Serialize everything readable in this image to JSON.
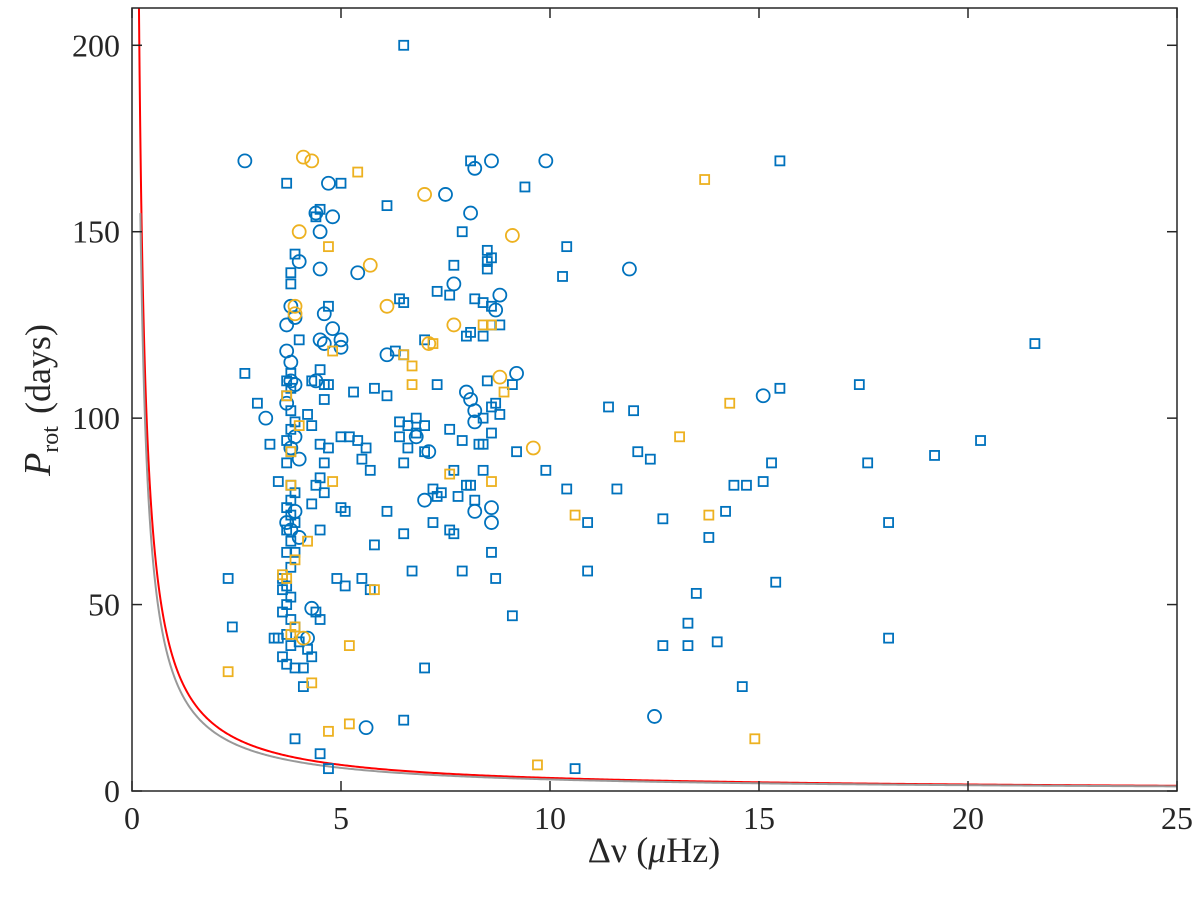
{
  "chart_data": {
    "type": "scatter",
    "title": "",
    "xlabel": {
      "symbol": "Δν",
      "unit_open": "(",
      "unit_mu": "μ",
      "unit_rest": "Hz)"
    },
    "ylabel": {
      "symbol": "P",
      "subscript": "rot",
      "unit": "(days)"
    },
    "xlim": [
      0,
      25
    ],
    "ylim": [
      0,
      210
    ],
    "xticks": [
      0,
      5,
      10,
      15,
      20,
      25
    ],
    "yticks": [
      0,
      50,
      100,
      150,
      200
    ],
    "xtick_labels": [
      "0",
      "5",
      "10",
      "15",
      "20",
      "25"
    ],
    "ytick_labels": [
      "0",
      "50",
      "100",
      "150",
      "200"
    ],
    "grid": false,
    "legend": "none",
    "colors": {
      "blue": "#0072BD",
      "yellow": "#EDB120",
      "red_curve": "#FF0000",
      "gray_curve": "#999999",
      "axis": "#262626"
    },
    "curves": [
      {
        "id": "red",
        "color": "#FF0000",
        "k": 35,
        "x_start": 0.16
      },
      {
        "id": "gray",
        "color": "#999999",
        "k": 31,
        "x_start": 0.2
      }
    ],
    "series": [
      {
        "color": "blue",
        "marker": "square",
        "points": [
          [
            6.5,
            200
          ],
          [
            3.7,
            163
          ],
          [
            5.0,
            163
          ],
          [
            3.9,
            144
          ],
          [
            3.8,
            139
          ],
          [
            3.8,
            136
          ],
          [
            4.0,
            121
          ],
          [
            3.8,
            112
          ],
          [
            3.7,
            110
          ],
          [
            3.8,
            108
          ],
          [
            3.7,
            106
          ],
          [
            3.8,
            102
          ],
          [
            3.9,
            99
          ],
          [
            3.8,
            97
          ],
          [
            3.7,
            94
          ],
          [
            3.8,
            91
          ],
          [
            3.7,
            88
          ],
          [
            3.5,
            83
          ],
          [
            3.8,
            82
          ],
          [
            3.9,
            80
          ],
          [
            3.8,
            78
          ],
          [
            3.7,
            76
          ],
          [
            3.8,
            74
          ],
          [
            3.9,
            72
          ],
          [
            3.7,
            70
          ],
          [
            3.8,
            67
          ],
          [
            3.9,
            64
          ],
          [
            3.7,
            64
          ],
          [
            3.8,
            60
          ],
          [
            3.6,
            57
          ],
          [
            3.7,
            55
          ],
          [
            3.6,
            54
          ],
          [
            3.8,
            52
          ],
          [
            3.7,
            50
          ],
          [
            3.6,
            48
          ],
          [
            3.8,
            46
          ],
          [
            3.9,
            44
          ],
          [
            3.7,
            42
          ],
          [
            3.5,
            41
          ],
          [
            3.8,
            39
          ],
          [
            3.6,
            36
          ],
          [
            3.7,
            34
          ],
          [
            3.9,
            33
          ],
          [
            4.1,
            33
          ],
          [
            4.0,
            40
          ],
          [
            4.2,
            38
          ],
          [
            4.3,
            36
          ],
          [
            4.1,
            28
          ],
          [
            3.9,
            14
          ],
          [
            4.5,
            10
          ],
          [
            4.7,
            6
          ],
          [
            4.4,
            154
          ],
          [
            4.5,
            156
          ],
          [
            4.7,
            130
          ],
          [
            4.5,
            113
          ],
          [
            4.3,
            110
          ],
          [
            4.6,
            109
          ],
          [
            4.7,
            109
          ],
          [
            4.6,
            105
          ],
          [
            4.2,
            101
          ],
          [
            4.3,
            98
          ],
          [
            4.5,
            93
          ],
          [
            4.7,
            92
          ],
          [
            4.6,
            88
          ],
          [
            4.5,
            84
          ],
          [
            4.4,
            82
          ],
          [
            4.6,
            80
          ],
          [
            4.3,
            77
          ],
          [
            4.5,
            70
          ],
          [
            4.4,
            48
          ],
          [
            4.5,
            46
          ],
          [
            2.3,
            57
          ],
          [
            2.4,
            44
          ],
          [
            2.7,
            112
          ],
          [
            3.0,
            104
          ],
          [
            3.3,
            93
          ],
          [
            3.4,
            41
          ],
          [
            6.1,
            157
          ],
          [
            6.4,
            132
          ],
          [
            6.5,
            131
          ],
          [
            6.3,
            118
          ],
          [
            6.5,
            117
          ],
          [
            5.3,
            107
          ],
          [
            5.8,
            108
          ],
          [
            6.1,
            106
          ],
          [
            6.4,
            99
          ],
          [
            6.6,
            98
          ],
          [
            6.8,
            96
          ],
          [
            7.0,
            98
          ],
          [
            5.0,
            95
          ],
          [
            5.2,
            95
          ],
          [
            5.4,
            94
          ],
          [
            5.6,
            92
          ],
          [
            5.5,
            89
          ],
          [
            5.7,
            86
          ],
          [
            6.4,
            95
          ],
          [
            6.6,
            92
          ],
          [
            6.5,
            88
          ],
          [
            6.8,
            100
          ],
          [
            7.0,
            91
          ],
          [
            5.0,
            76
          ],
          [
            5.1,
            75
          ],
          [
            6.1,
            75
          ],
          [
            6.5,
            69
          ],
          [
            5.8,
            66
          ],
          [
            4.9,
            57
          ],
          [
            5.1,
            55
          ],
          [
            5.5,
            57
          ],
          [
            5.7,
            54
          ],
          [
            6.7,
            59
          ],
          [
            7.0,
            33
          ],
          [
            6.5,
            19
          ],
          [
            7.3,
            134
          ],
          [
            7.6,
            133
          ],
          [
            7.7,
            141
          ],
          [
            7.9,
            150
          ],
          [
            7.0,
            121
          ],
          [
            7.3,
            109
          ],
          [
            8.1,
            123
          ],
          [
            8.0,
            122
          ],
          [
            8.4,
            131
          ],
          [
            8.6,
            130
          ],
          [
            8.5,
            142
          ],
          [
            8.6,
            143
          ],
          [
            8.5,
            145
          ],
          [
            8.5,
            140
          ],
          [
            8.6,
            125
          ],
          [
            8.8,
            125
          ],
          [
            8.2,
            132
          ],
          [
            8.4,
            122
          ],
          [
            7.6,
            97
          ],
          [
            7.9,
            94
          ],
          [
            8.3,
            93
          ],
          [
            8.4,
            93
          ],
          [
            8.1,
            82
          ],
          [
            8.0,
            82
          ],
          [
            7.7,
            86
          ],
          [
            8.4,
            86
          ],
          [
            7.2,
            81
          ],
          [
            7.3,
            79
          ],
          [
            7.4,
            80
          ],
          [
            7.8,
            79
          ],
          [
            7.2,
            72
          ],
          [
            7.6,
            70
          ],
          [
            7.7,
            69
          ],
          [
            8.2,
            78
          ],
          [
            8.4,
            100
          ],
          [
            8.6,
            103
          ],
          [
            8.7,
            104
          ],
          [
            8.5,
            110
          ],
          [
            8.8,
            101
          ],
          [
            8.6,
            96
          ],
          [
            8.7,
            57
          ],
          [
            7.9,
            59
          ],
          [
            8.6,
            64
          ],
          [
            9.2,
            91
          ],
          [
            9.1,
            109
          ],
          [
            9.4,
            162
          ],
          [
            8.1,
            169
          ],
          [
            9.1,
            47
          ],
          [
            9.9,
            86
          ],
          [
            10.4,
            146
          ],
          [
            10.3,
            138
          ],
          [
            10.4,
            81
          ],
          [
            10.9,
            72
          ],
          [
            10.9,
            59
          ],
          [
            10.6,
            6
          ],
          [
            11.4,
            103
          ],
          [
            11.6,
            81
          ],
          [
            12.0,
            102
          ],
          [
            12.1,
            91
          ],
          [
            12.4,
            89
          ],
          [
            12.7,
            73
          ],
          [
            12.7,
            39
          ],
          [
            13.3,
            45
          ],
          [
            13.3,
            39
          ],
          [
            13.5,
            53
          ],
          [
            13.8,
            68
          ],
          [
            14.0,
            40
          ],
          [
            14.2,
            75
          ],
          [
            14.4,
            82
          ],
          [
            14.7,
            82
          ],
          [
            14.6,
            28
          ],
          [
            15.1,
            83
          ],
          [
            15.3,
            88
          ],
          [
            15.4,
            56
          ],
          [
            15.5,
            108
          ],
          [
            15.5,
            169
          ],
          [
            17.4,
            109
          ],
          [
            17.6,
            88
          ],
          [
            18.1,
            72
          ],
          [
            18.1,
            41
          ],
          [
            19.2,
            90
          ],
          [
            20.3,
            94
          ],
          [
            21.6,
            120
          ]
        ]
      },
      {
        "color": "blue",
        "marker": "circle",
        "points": [
          [
            2.7,
            169
          ],
          [
            3.2,
            100
          ],
          [
            3.8,
            130
          ],
          [
            3.7,
            125
          ],
          [
            3.9,
            127
          ],
          [
            3.7,
            118
          ],
          [
            3.8,
            115
          ],
          [
            3.8,
            110
          ],
          [
            3.9,
            109
          ],
          [
            3.7,
            104
          ],
          [
            3.9,
            95
          ],
          [
            3.8,
            92
          ],
          [
            4.0,
            89
          ],
          [
            3.7,
            72
          ],
          [
            3.9,
            75
          ],
          [
            3.8,
            70
          ],
          [
            4.0,
            68
          ],
          [
            4.4,
            155
          ],
          [
            4.5,
            150
          ],
          [
            4.5,
            140
          ],
          [
            4.0,
            142
          ],
          [
            4.7,
            163
          ],
          [
            4.8,
            154
          ],
          [
            4.6,
            128
          ],
          [
            4.8,
            124
          ],
          [
            4.5,
            121
          ],
          [
            4.6,
            120
          ],
          [
            5.0,
            121
          ],
          [
            5.0,
            119
          ],
          [
            4.4,
            110
          ],
          [
            4.3,
            49
          ],
          [
            4.2,
            41
          ],
          [
            5.4,
            139
          ],
          [
            6.1,
            117
          ],
          [
            5.6,
            17
          ],
          [
            6.8,
            95
          ],
          [
            7.1,
            91
          ],
          [
            7.0,
            78
          ],
          [
            7.5,
            160
          ],
          [
            7.7,
            136
          ],
          [
            8.1,
            155
          ],
          [
            8.0,
            107
          ],
          [
            8.1,
            105
          ],
          [
            8.2,
            102
          ],
          [
            8.2,
            99
          ],
          [
            8.2,
            75
          ],
          [
            8.6,
            76
          ],
          [
            8.6,
            72
          ],
          [
            8.2,
            167
          ],
          [
            8.6,
            169
          ],
          [
            8.8,
            133
          ],
          [
            8.7,
            129
          ],
          [
            9.2,
            112
          ],
          [
            9.9,
            169
          ],
          [
            11.9,
            140
          ],
          [
            12.5,
            20
          ],
          [
            15.1,
            106
          ]
        ]
      },
      {
        "color": "yellow",
        "marker": "square",
        "points": [
          [
            5.4,
            166
          ],
          [
            4.7,
            146
          ],
          [
            4.8,
            118
          ],
          [
            3.7,
            106
          ],
          [
            3.8,
            91
          ],
          [
            4.0,
            98
          ],
          [
            3.8,
            82
          ],
          [
            4.8,
            83
          ],
          [
            4.2,
            67
          ],
          [
            3.9,
            62
          ],
          [
            3.6,
            58
          ],
          [
            3.7,
            57
          ],
          [
            5.8,
            54
          ],
          [
            3.9,
            44
          ],
          [
            3.8,
            42
          ],
          [
            4.3,
            29
          ],
          [
            2.3,
            32
          ],
          [
            4.7,
            16
          ],
          [
            5.2,
            18
          ],
          [
            5.2,
            39
          ],
          [
            6.5,
            117
          ],
          [
            6.7,
            114
          ],
          [
            6.7,
            109
          ],
          [
            7.2,
            120
          ],
          [
            8.4,
            125
          ],
          [
            8.6,
            125
          ],
          [
            7.6,
            85
          ],
          [
            8.6,
            83
          ],
          [
            8.9,
            107
          ],
          [
            9.7,
            7
          ],
          [
            10.6,
            74
          ],
          [
            13.1,
            95
          ],
          [
            13.7,
            164
          ],
          [
            13.8,
            74
          ],
          [
            14.3,
            104
          ],
          [
            14.9,
            14
          ]
        ]
      },
      {
        "color": "yellow",
        "marker": "circle",
        "points": [
          [
            4.1,
            170
          ],
          [
            4.3,
            169
          ],
          [
            4.0,
            150
          ],
          [
            3.9,
            130
          ],
          [
            3.9,
            128
          ],
          [
            4.1,
            41
          ],
          [
            5.7,
            141
          ],
          [
            6.1,
            130
          ],
          [
            7.0,
            160
          ],
          [
            7.7,
            125
          ],
          [
            7.1,
            120
          ],
          [
            8.8,
            111
          ],
          [
            9.1,
            149
          ],
          [
            9.6,
            92
          ]
        ]
      }
    ]
  }
}
